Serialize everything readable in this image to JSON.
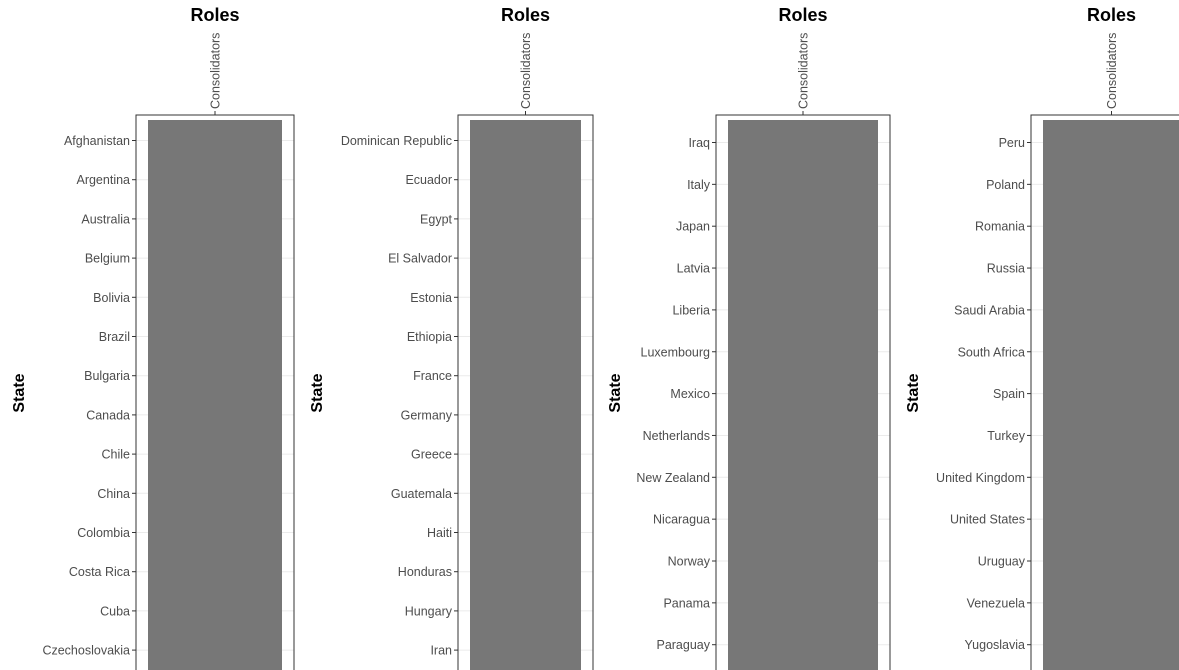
{
  "chart_data": [
    {
      "type": "heatmap",
      "title": "Roles",
      "ylabel": "State",
      "categories_x": [
        "Consolidators"
      ],
      "categories_y": [
        "Afghanistan",
        "Argentina",
        "Australia",
        "Belgium",
        "Bolivia",
        "Brazil",
        "Bulgaria",
        "Canada",
        "Chile",
        "China",
        "Colombia",
        "Costa Rica",
        "Cuba",
        "Czechoslovakia"
      ],
      "filled": true,
      "grid": true
    },
    {
      "type": "heatmap",
      "title": "Roles",
      "ylabel": "State",
      "categories_x": [
        "Consolidators"
      ],
      "categories_y": [
        "Dominican Republic",
        "Ecuador",
        "Egypt",
        "El Salvador",
        "Estonia",
        "Ethiopia",
        "France",
        "Germany",
        "Greece",
        "Guatemala",
        "Haiti",
        "Honduras",
        "Hungary",
        "Iran"
      ],
      "filled": true,
      "grid": true
    },
    {
      "type": "heatmap",
      "title": "Roles",
      "ylabel": "State",
      "categories_x": [
        "Consolidators"
      ],
      "categories_y": [
        "Iraq",
        "Italy",
        "Japan",
        "Latvia",
        "Liberia",
        "Luxembourg",
        "Mexico",
        "Netherlands",
        "New Zealand",
        "Nicaragua",
        "Norway",
        "Panama",
        "Paraguay"
      ],
      "filled": true,
      "grid": true
    },
    {
      "type": "heatmap",
      "title": "Roles",
      "ylabel": "State",
      "categories_x": [
        "Consolidators"
      ],
      "categories_y": [
        "Peru",
        "Poland",
        "Romania",
        "Russia",
        "Saudi Arabia",
        "South Africa",
        "Spain",
        "Turkey",
        "United Kingdom",
        "United States",
        "Uruguay",
        "Venezuela",
        "Yugoslavia"
      ],
      "filled": true,
      "grid": true
    }
  ]
}
